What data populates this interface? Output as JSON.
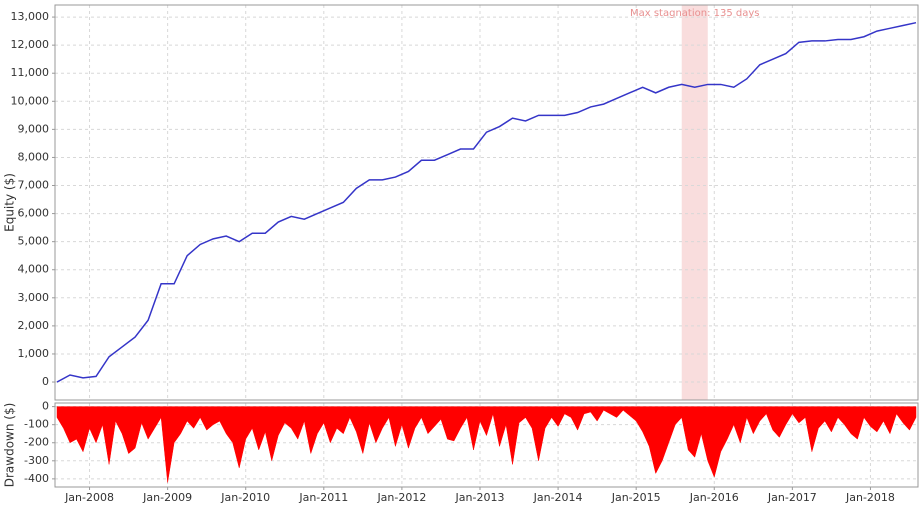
{
  "chart_data": [
    {
      "type": "line",
      "ylabel": "Equity ($)",
      "color": "#3535c8",
      "grid": true,
      "annotation": {
        "label": "Max stagnation: 135 days",
        "start": "2015-08",
        "end": "2015-12",
        "color": "#f5c6c6"
      },
      "xlim": [
        "2007-08",
        "2018-08"
      ],
      "ylim": [
        -640,
        13430
      ],
      "yticks": [
        0,
        {
          "value": 1000,
          "label": "1,000"
        },
        {
          "value": 2000,
          "label": "2,000"
        },
        {
          "value": 3000,
          "label": "3,000"
        },
        {
          "value": 4000,
          "label": "4,000"
        },
        {
          "value": 5000,
          "label": "5,000"
        },
        {
          "value": 6000,
          "label": "6,000"
        },
        {
          "value": 7000,
          "label": "7,000"
        },
        {
          "value": 8000,
          "label": "8,000"
        },
        {
          "value": 9000,
          "label": "9,000"
        },
        {
          "value": 10000,
          "label": "10,000"
        },
        {
          "value": 11000,
          "label": "11,000"
        },
        {
          "value": 12000,
          "label": "12,000"
        },
        {
          "value": 13000,
          "label": "13,000"
        }
      ],
      "x": [
        "2007-08",
        "2007-10",
        "2007-12",
        "2008-02",
        "2008-04",
        "2008-06",
        "2008-08",
        "2008-10",
        "2008-12",
        "2009-02",
        "2009-04",
        "2009-06",
        "2009-08",
        "2009-10",
        "2009-12",
        "2010-02",
        "2010-04",
        "2010-06",
        "2010-08",
        "2010-10",
        "2010-12",
        "2011-02",
        "2011-04",
        "2011-06",
        "2011-08",
        "2011-10",
        "2011-12",
        "2012-02",
        "2012-04",
        "2012-06",
        "2012-08",
        "2012-10",
        "2012-12",
        "2013-02",
        "2013-04",
        "2013-06",
        "2013-08",
        "2013-10",
        "2013-12",
        "2014-02",
        "2014-04",
        "2014-06",
        "2014-08",
        "2014-10",
        "2014-12",
        "2015-02",
        "2015-04",
        "2015-06",
        "2015-08",
        "2015-10",
        "2015-12",
        "2016-02",
        "2016-04",
        "2016-06",
        "2016-08",
        "2016-10",
        "2016-12",
        "2017-02",
        "2017-04",
        "2017-06",
        "2017-08",
        "2017-10",
        "2017-12",
        "2018-02",
        "2018-04",
        "2018-06",
        "2018-08"
      ],
      "values": [
        0,
        250,
        150,
        200,
        900,
        1250,
        1600,
        2200,
        3500,
        3500,
        4500,
        4900,
        5100,
        5200,
        5000,
        5300,
        5300,
        5700,
        5900,
        5800,
        6000,
        6200,
        6400,
        6900,
        7200,
        7200,
        7300,
        7500,
        7900,
        7900,
        8100,
        8300,
        8300,
        8900,
        9100,
        9400,
        9300,
        9500,
        9500,
        9500,
        9600,
        9800,
        9900,
        10100,
        10300,
        10500,
        10300,
        10500,
        10600,
        10500,
        10600,
        10600,
        10500,
        10800,
        11300,
        11500,
        11700,
        12100,
        12150,
        12150,
        12200,
        12200,
        12300,
        12500,
        12600,
        12700,
        12800
      ]
    },
    {
      "type": "area",
      "ylabel": "Drawdown ($)",
      "color": "#ff0000",
      "grid": true,
      "xlim": [
        "2007-08",
        "2018-08"
      ],
      "ylim": [
        -445,
        20
      ],
      "yticks": [
        0,
        -100,
        -200,
        -300,
        -400
      ],
      "xticks": [
        {
          "value": "2008-01",
          "label": "Jan-2008"
        },
        {
          "value": "2009-01",
          "label": "Jan-2009"
        },
        {
          "value": "2010-01",
          "label": "Jan-2010"
        },
        {
          "value": "2011-01",
          "label": "Jan-2011"
        },
        {
          "value": "2012-01",
          "label": "Jan-2012"
        },
        {
          "value": "2013-01",
          "label": "Jan-2013"
        },
        {
          "value": "2014-01",
          "label": "Jan-2014"
        },
        {
          "value": "2015-01",
          "label": "Jan-2015"
        },
        {
          "value": "2016-01",
          "label": "Jan-2016"
        },
        {
          "value": "2017-01",
          "label": "Jan-2017"
        },
        {
          "value": "2018-01",
          "label": "Jan-2018"
        }
      ],
      "x": [
        "2007-08",
        "2007-09",
        "2007-10",
        "2007-11",
        "2007-12",
        "2008-01",
        "2008-02",
        "2008-03",
        "2008-04",
        "2008-05",
        "2008-06",
        "2008-07",
        "2008-08",
        "2008-09",
        "2008-10",
        "2008-11",
        "2008-12",
        "2009-01",
        "2009-02",
        "2009-03",
        "2009-04",
        "2009-05",
        "2009-06",
        "2009-07",
        "2009-08",
        "2009-09",
        "2009-10",
        "2009-11",
        "2009-12",
        "2010-01",
        "2010-02",
        "2010-03",
        "2010-04",
        "2010-05",
        "2010-06",
        "2010-07",
        "2010-08",
        "2010-09",
        "2010-10",
        "2010-11",
        "2010-12",
        "2011-01",
        "2011-02",
        "2011-03",
        "2011-04",
        "2011-05",
        "2011-06",
        "2011-07",
        "2011-08",
        "2011-09",
        "2011-10",
        "2011-11",
        "2011-12",
        "2012-01",
        "2012-02",
        "2012-03",
        "2012-04",
        "2012-05",
        "2012-06",
        "2012-07",
        "2012-08",
        "2012-09",
        "2012-10",
        "2012-11",
        "2012-12",
        "2013-01",
        "2013-02",
        "2013-03",
        "2013-04",
        "2013-05",
        "2013-06",
        "2013-07",
        "2013-08",
        "2013-09",
        "2013-10",
        "2013-11",
        "2013-12",
        "2014-01",
        "2014-02",
        "2014-03",
        "2014-04",
        "2014-05",
        "2014-06",
        "2014-07",
        "2014-08",
        "2014-09",
        "2014-10",
        "2014-11",
        "2014-12",
        "2015-01",
        "2015-02",
        "2015-03",
        "2015-04",
        "2015-05",
        "2015-06",
        "2015-07",
        "2015-08",
        "2015-09",
        "2015-10",
        "2015-11",
        "2015-12",
        "2016-01",
        "2016-02",
        "2016-03",
        "2016-04",
        "2016-05",
        "2016-06",
        "2016-07",
        "2016-08",
        "2016-09",
        "2016-10",
        "2016-11",
        "2016-12",
        "2017-01",
        "2017-02",
        "2017-03",
        "2017-04",
        "2017-05",
        "2017-06",
        "2017-07",
        "2017-08",
        "2017-09",
        "2017-10",
        "2017-11",
        "2017-12",
        "2018-01",
        "2018-02",
        "2018-03",
        "2018-04",
        "2018-05",
        "2018-06",
        "2018-07",
        "2018-08"
      ],
      "values": [
        -60,
        -120,
        -200,
        -180,
        -250,
        -120,
        -200,
        -100,
        -320,
        -80,
        -150,
        -260,
        -230,
        -90,
        -180,
        -120,
        -60,
        -420,
        -200,
        -150,
        -80,
        -120,
        -60,
        -130,
        -100,
        -80,
        -150,
        -200,
        -340,
        -180,
        -120,
        -240,
        -140,
        -300,
        -160,
        -90,
        -120,
        -180,
        -80,
        -260,
        -150,
        -90,
        -200,
        -120,
        -150,
        -60,
        -140,
        -260,
        -90,
        -200,
        -120,
        -60,
        -220,
        -100,
        -230,
        -120,
        -60,
        -150,
        -110,
        -70,
        -180,
        -190,
        -120,
        -60,
        -240,
        -80,
        -160,
        -40,
        -220,
        -100,
        -320,
        -90,
        -60,
        -120,
        -300,
        -120,
        -60,
        -110,
        -40,
        -60,
        -130,
        -40,
        -30,
        -80,
        -20,
        -40,
        -60,
        -20,
        -50,
        -80,
        -140,
        -220,
        -370,
        -300,
        -200,
        -100,
        -60,
        -240,
        -280,
        -150,
        -300,
        -390,
        -250,
        -180,
        -100,
        -200,
        -60,
        -150,
        -80,
        -40,
        -130,
        -170,
        -100,
        -40,
        -90,
        -60,
        -250,
        -120,
        -80,
        -140,
        -60,
        -100,
        -150,
        -180,
        -60,
        -110,
        -140,
        -80,
        -150,
        -40,
        -90,
        -130,
        -60
      ]
    }
  ]
}
